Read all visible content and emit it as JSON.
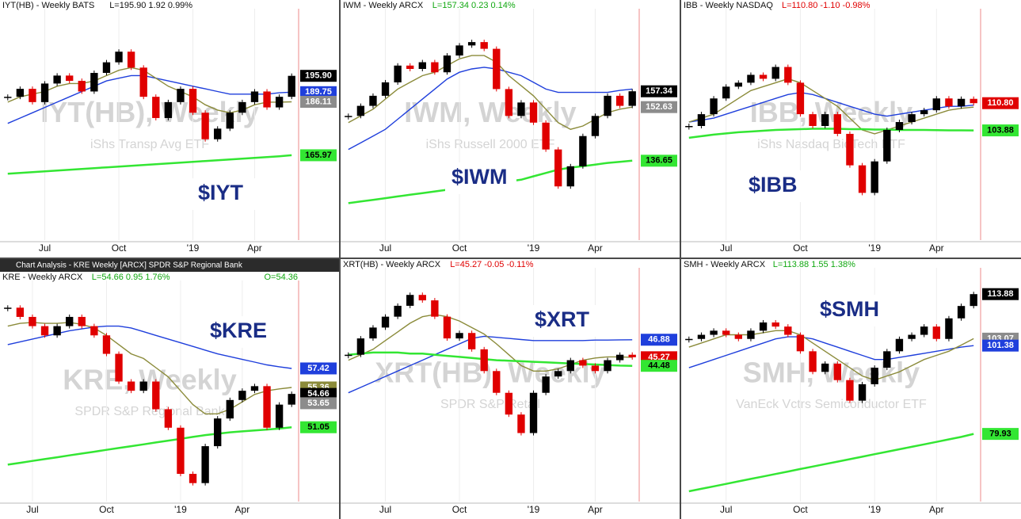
{
  "chart_data": [
    {
      "type": "candlestick",
      "title": "IYT(HB) - Weekly  BATS",
      "subtitle": "L=195.90  1.92  0.99%",
      "subtitle_color": "#111",
      "watermark": "IYT(HB), Weekly",
      "watermark_sub": "iShs Transp Avg ETF",
      "ticker": "$IYT",
      "categories": [
        null,
        null,
        null,
        "Jul",
        null,
        null,
        null,
        null,
        null,
        "Oct",
        null,
        null,
        null,
        null,
        null,
        "'19",
        null,
        null,
        null,
        null,
        "Apr",
        null,
        null,
        null
      ],
      "values": [
        188,
        191,
        186,
        193,
        196,
        194,
        190,
        197,
        201,
        205,
        199,
        188,
        180,
        186,
        191,
        182,
        172,
        176,
        182,
        186,
        190,
        184,
        188,
        195.9
      ],
      "color_up": "#000000",
      "color_down": "#e00000",
      "lines": [
        {
          "color": "#1f3fdc",
          "values": [
            178,
            180,
            182,
            184,
            186,
            188,
            190,
            192,
            194,
            195,
            196,
            196,
            195,
            194,
            193,
            192,
            191,
            190,
            189,
            189,
            189,
            189,
            189.5,
            189.75
          ]
        },
        {
          "color": "#8b8b3a",
          "values": [
            186,
            188,
            189,
            190,
            192,
            193,
            193,
            194,
            196,
            198,
            199,
            198,
            195,
            192,
            190,
            188,
            185,
            183,
            182,
            183,
            185,
            186,
            186,
            186.11
          ]
        },
        {
          "color": "#33e633",
          "values": [
            159,
            159.3,
            159.6,
            159.9,
            160.2,
            160.5,
            160.8,
            161.1,
            161.4,
            161.7,
            162,
            162.3,
            162.6,
            162.9,
            163.2,
            163.5,
            163.8,
            164.1,
            164.4,
            164.7,
            165,
            165.3,
            165.6,
            165.97
          ]
        }
      ],
      "ylim": [
        134,
        220
      ],
      "markers": [
        {
          "value": 195.9,
          "label": "195.90",
          "color": "#000000"
        },
        {
          "value": 189.75,
          "label": "189.75",
          "color": "#1f3fdc"
        },
        {
          "value": 186.11,
          "label": "186.11",
          "color": "#8c8c8c"
        },
        {
          "value": 165.97,
          "label": "165.97",
          "color": "#33e633"
        }
      ]
    },
    {
      "type": "candlestick",
      "title": "IWM - Weekly  ARCX",
      "subtitle": "L=157.34  0.23  0.14%",
      "subtitle_color": "#11a811",
      "watermark": "IWM, Weekly",
      "watermark_sub": "iShs Russell 2000 ETF",
      "ticker": "$IWM",
      "categories": [
        null,
        null,
        null,
        "Jul",
        null,
        null,
        null,
        null,
        null,
        "Oct",
        null,
        null,
        null,
        null,
        null,
        "'19",
        null,
        null,
        null,
        null,
        "Apr",
        null,
        null,
        null
      ],
      "values": [
        150,
        153,
        156,
        160,
        165,
        164,
        166,
        163,
        168,
        171,
        172,
        170,
        158,
        150,
        154,
        148,
        140,
        129,
        135,
        144,
        150,
        156,
        153,
        157.34
      ],
      "color_up": "#000000",
      "color_down": "#e00000",
      "lines": [
        {
          "color": "#1f3fdc",
          "values": [
            140,
            142,
            144,
            146,
            149,
            152,
            155,
            158,
            161,
            163,
            164,
            164.5,
            164,
            163,
            162,
            160,
            158,
            157,
            157,
            157,
            157,
            157,
            157.6,
            158
          ]
        },
        {
          "color": "#8b8b3a",
          "values": [
            148,
            150,
            152,
            155,
            158,
            160,
            162,
            163,
            165,
            167,
            168,
            168,
            166,
            162,
            159,
            156,
            152,
            148,
            146,
            147,
            149,
            151,
            152,
            152.63
          ]
        },
        {
          "color": "#33e633",
          "values": [
            124,
            124.5,
            125,
            125.5,
            126,
            126.5,
            127,
            127.5,
            128,
            128.5,
            129,
            129.5,
            130,
            130.5,
            131,
            132,
            133,
            134,
            134.6,
            135,
            135.5,
            136,
            136.3,
            136.65
          ]
        }
      ],
      "ylim": [
        113,
        181
      ],
      "markers": [
        {
          "value": 157.34,
          "label": "157.34",
          "color": "#000000"
        },
        {
          "value": 152.63,
          "label": "152.63",
          "color": "#8c8c8c"
        },
        {
          "value": 136.65,
          "label": "136.65",
          "color": "#33e633"
        }
      ]
    },
    {
      "type": "candlestick",
      "title": "IBB - Weekly  NASDAQ",
      "subtitle": "L=110.80  -1.10  -0.98%",
      "subtitle_color": "#e00000",
      "watermark": "IBB, Weekly",
      "watermark_sub": "iShs Nasdaq BioTech ETF",
      "ticker": "$IBB",
      "categories": [
        null,
        null,
        null,
        "Jul",
        null,
        null,
        null,
        null,
        null,
        "Oct",
        null,
        null,
        null,
        null,
        null,
        "'19",
        null,
        null,
        null,
        null,
        "Apr",
        null,
        null,
        null
      ],
      "values": [
        105,
        108,
        112,
        115,
        116,
        118,
        117,
        120,
        116,
        108,
        105,
        108,
        103,
        95,
        88,
        96,
        104,
        106,
        108,
        109,
        112,
        110,
        111.9,
        110.8
      ],
      "color_up": "#000000",
      "color_down": "#e00000",
      "lines": [
        {
          "color": "#1f3fdc",
          "values": [
            106,
            106.5,
            107,
            108,
            109,
            110,
            111,
            112,
            113,
            113.5,
            113,
            112,
            111,
            110,
            109,
            108,
            107.5,
            108,
            108.5,
            109,
            109.5,
            110,
            110,
            110.3
          ]
        },
        {
          "color": "#8b8b3a",
          "values": [
            106,
            107,
            108,
            110,
            112,
            114,
            115,
            116,
            117,
            116,
            114,
            112,
            110,
            107,
            104,
            103,
            104,
            105,
            106,
            107,
            108,
            109,
            109.5,
            109.8
          ]
        },
        {
          "color": "#33e633",
          "values": [
            102,
            102.4,
            102.8,
            103.1,
            103.4,
            103.6,
            103.8,
            104,
            104.1,
            104.2,
            104.3,
            104.3,
            104.3,
            104.2,
            104.2,
            104.1,
            104.1,
            104,
            104,
            104,
            103.95,
            103.9,
            103.9,
            103.88
          ]
        }
      ],
      "ylim": [
        76,
        134
      ],
      "markers": [
        {
          "value": 110.8,
          "label": "110.80",
          "color": "#e00000"
        },
        {
          "value": 103.88,
          "label": "103.88",
          "color": "#33e633"
        }
      ]
    },
    {
      "type": "candlestick",
      "window_title": "Chart Analysis - KRE Weekly [ARCX] SPDR S&P Regional Bank",
      "title": "KRE - Weekly  ARCX",
      "subtitle": "L=54.66  0.95  1.76%",
      "subtitle_color": "#11a811",
      "open_label": "O=54.36",
      "watermark": "KRE, Weekly",
      "watermark_sub": "SPDR S&P Regional Bank",
      "ticker": "$KRE",
      "categories": [
        null,
        null,
        "Jul",
        null,
        null,
        null,
        null,
        null,
        "Oct",
        null,
        null,
        null,
        null,
        null,
        "'19",
        null,
        null,
        null,
        null,
        "Apr",
        null,
        null,
        null,
        null
      ],
      "values": [
        64,
        63,
        62,
        61,
        62,
        63,
        62,
        61,
        59,
        56,
        55,
        56,
        53,
        51,
        46,
        45,
        49,
        52,
        54,
        55,
        55.5,
        51,
        53.5,
        54.66
      ],
      "color_up": "#000000",
      "color_down": "#e00000",
      "lines": [
        {
          "color": "#1f3fdc",
          "values": [
            60,
            60.3,
            60.6,
            60.9,
            61.2,
            61.5,
            61.7,
            61.9,
            62,
            62,
            61.8,
            61.4,
            61,
            60.6,
            60.2,
            59.8,
            59.4,
            59,
            58.7,
            58.4,
            58.1,
            57.8,
            57.6,
            57.42
          ]
        },
        {
          "color": "#8b8b3a",
          "values": [
            62,
            62.3,
            62.4,
            62.3,
            62.3,
            62.4,
            62.2,
            61.8,
            61,
            60,
            59,
            58.5,
            57.5,
            56.5,
            55,
            53.5,
            52.5,
            52.5,
            53,
            53.8,
            54.6,
            55,
            55.2,
            55.36
          ]
        },
        {
          "color": "#33e633",
          "values": [
            47,
            47.2,
            47.4,
            47.6,
            47.8,
            48,
            48.2,
            48.4,
            48.6,
            48.8,
            49,
            49.2,
            49.4,
            49.6,
            49.8,
            50,
            50.2,
            50.35,
            50.5,
            50.6,
            50.7,
            50.8,
            50.9,
            51.05
          ]
        }
      ],
      "ylim": [
        43,
        66.6
      ],
      "markers": [
        {
          "value": 57.42,
          "label": "57.42",
          "color": "#1f3fdc"
        },
        {
          "value": 55.36,
          "label": "55.36",
          "color": "#8b8b3a"
        },
        {
          "value": 54.66,
          "label": "54.66",
          "color": "#000000"
        },
        {
          "value": 53.65,
          "label": "53.65",
          "color": "#8c8c8c"
        },
        {
          "value": 51.05,
          "label": "51.05",
          "color": "#33e633"
        }
      ]
    },
    {
      "type": "candlestick",
      "title": "XRT(HB) - Weekly  ARCX",
      "subtitle": "L=45.27  -0.05  -0.11%",
      "subtitle_color": "#e00000",
      "watermark": "XRT(HB), Weekly",
      "watermark_sub": "SPDR S&P Retail",
      "ticker": "$XRT",
      "categories": [
        null,
        null,
        null,
        "Jul",
        null,
        null,
        null,
        null,
        null,
        "Oct",
        null,
        null,
        null,
        null,
        null,
        "'19",
        null,
        null,
        null,
        null,
        "Apr",
        null,
        null,
        null
      ],
      "values": [
        45.5,
        47,
        48,
        49,
        50,
        51,
        50.5,
        49,
        47,
        47.5,
        46,
        44,
        42,
        40,
        38.3,
        42,
        43.5,
        44,
        45,
        44.5,
        44,
        45,
        45.5,
        45.27
      ],
      "color_up": "#000000",
      "color_down": "#e00000",
      "lines": [
        {
          "color": "#1f3fdc",
          "values": [
            42,
            42.5,
            43,
            43.5,
            44,
            44.5,
            45,
            45.5,
            46,
            46.5,
            47,
            47.2,
            47.1,
            47,
            46.9,
            46.8,
            46.8,
            46.8,
            46.8,
            46.8,
            46.85,
            46.85,
            46.87,
            46.88
          ]
        },
        {
          "color": "#8b8b3a",
          "values": [
            45,
            45.5,
            46,
            46.8,
            47.6,
            48.4,
            49,
            49.2,
            49,
            48.6,
            48,
            47.4,
            46.5,
            45.5,
            44.5,
            44,
            44,
            44.2,
            44.6,
            45,
            45.2,
            45.3,
            45.3,
            45.27
          ]
        },
        {
          "color": "#33e633",
          "values": [
            45.5,
            45.6,
            45.7,
            45.7,
            45.7,
            45.6,
            45.6,
            45.5,
            45.4,
            45.3,
            45.2,
            45.1,
            45,
            44.95,
            44.9,
            44.85,
            44.8,
            44.75,
            44.7,
            44.65,
            44.6,
            44.55,
            44.5,
            44.48
          ]
        }
      ],
      "ylim": [
        32,
        53.2
      ],
      "markers": [
        {
          "value": 46.88,
          "label": "46.88",
          "color": "#1f3fdc"
        },
        {
          "value": 45.27,
          "label": "45.27",
          "color": "#e00000"
        },
        {
          "value": 44.48,
          "label": "44.48",
          "color": "#33e633"
        }
      ]
    },
    {
      "type": "candlestick",
      "title": "SMH - Weekly  ARCX",
      "subtitle": "L=113.88  1.55  1.38%",
      "subtitle_color": "#11a811",
      "watermark": "SMH, Weekly",
      "watermark_sub": "VanEck Vctrs Semiconductor ETF",
      "ticker": "$SMH",
      "categories": [
        null,
        null,
        null,
        "Jul",
        null,
        null,
        null,
        null,
        null,
        "Oct",
        null,
        null,
        null,
        null,
        null,
        "'19",
        null,
        null,
        null,
        null,
        "Apr",
        null,
        null,
        null
      ],
      "values": [
        103,
        104,
        105,
        104,
        103,
        105,
        107,
        106,
        104,
        100,
        95,
        97,
        93,
        88,
        92,
        96,
        100,
        103,
        104,
        106,
        103,
        108,
        111,
        113.88
      ],
      "color_up": "#000000",
      "color_down": "#e00000",
      "lines": [
        {
          "color": "#1f3fdc",
          "values": [
            96,
            97,
            98,
            99,
            100,
            101,
            102,
            103,
            103.5,
            103.5,
            103,
            102,
            101,
            100,
            99,
            98,
            98,
            98.5,
            99,
            99.5,
            100,
            100.5,
            101,
            101.38
          ]
        },
        {
          "color": "#8b8b3a",
          "values": [
            101,
            102,
            103,
            104,
            104,
            104,
            104.5,
            105,
            105,
            104,
            102,
            100,
            98,
            96,
            94,
            93,
            94,
            95,
            96.5,
            98,
            99,
            100,
            101.5,
            103.07
          ]
        },
        {
          "color": "#33e633",
          "values": [
            66,
            66.6,
            67.2,
            67.8,
            68.4,
            69,
            69.6,
            70.2,
            70.8,
            71.4,
            72,
            72.6,
            73.2,
            73.8,
            74.4,
            75,
            75.6,
            76.2,
            76.8,
            77.4,
            78,
            78.6,
            79.2,
            79.93
          ]
        }
      ],
      "ylim": [
        63.5,
        119.5
      ],
      "markers": [
        {
          "value": 113.88,
          "label": "113.88",
          "color": "#000000"
        },
        {
          "value": 103.07,
          "label": "103.07",
          "color": "#8c8c8c"
        },
        {
          "value": 101.38,
          "label": "101.38",
          "color": "#1f3fdc"
        },
        {
          "value": 79.93,
          "label": "79.93",
          "color": "#33e633"
        }
      ]
    }
  ]
}
